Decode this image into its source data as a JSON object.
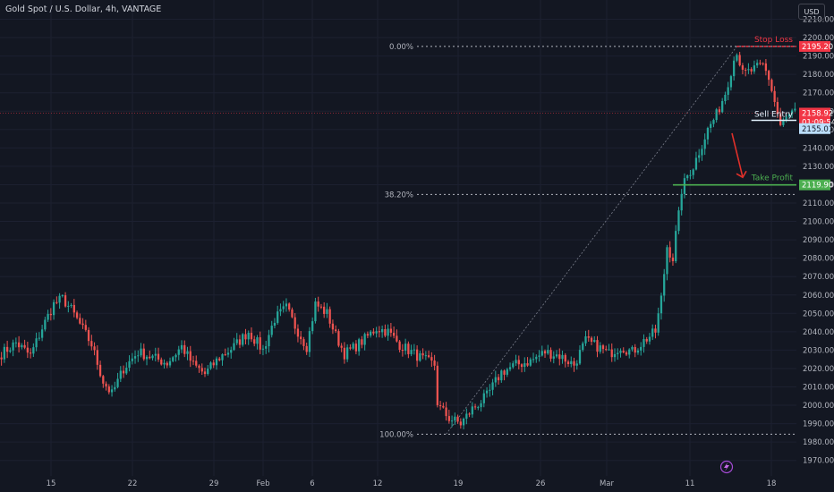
{
  "header": {
    "title": "Gold Spot / U.S. Dollar, 4h, VANTAGE",
    "currency_button": "USD"
  },
  "colors": {
    "background": "#131722",
    "up": "#26a69a",
    "down": "#ef5350",
    "axis_text": "#b2b5be",
    "stop_loss": "#f23645",
    "take_profit": "#4caf50",
    "entry": "#90caf9",
    "arrow": "#e0302a",
    "fib_line": "#b2b5be",
    "current_price": "#f23645"
  },
  "icons": {
    "bottom_logo": "lightning-bolt-icon"
  },
  "chart_data": {
    "type": "candlestick",
    "timeframe": "4h",
    "ylim": [
      1965,
      2212
    ],
    "y_ticks": [
      1970,
      1980,
      1990,
      2000,
      2010,
      2020,
      2030,
      2040,
      2050,
      2060,
      2070,
      2080,
      2090,
      2100,
      2110,
      2120,
      2130,
      2140,
      2150,
      2160,
      2170,
      2180,
      2190,
      2200,
      2210
    ],
    "x_ticks": [
      "15",
      "22",
      "29",
      "Feb",
      "6",
      "12",
      "19",
      "26",
      "Mar",
      "11",
      "18"
    ],
    "price_labels": {
      "stop_loss": "2195.20",
      "current": "2158.92",
      "countdown": "01:09:54",
      "entry": "2155.01",
      "take_profit": "2119.90"
    },
    "annotations": {
      "stop_loss": "Stop Loss",
      "sell_entry": "Sell Entry",
      "take_profit": "Take Profit"
    },
    "levels": {
      "stop_loss": 2195.2,
      "entry": 2155.01,
      "take_profit": 2119.9,
      "current": 2158.92
    },
    "fibonacci": {
      "high": 2195.2,
      "low": 1984.3,
      "levels": [
        {
          "label": "0.00%",
          "value": 2195.2
        },
        {
          "label": "38.20%",
          "value": 2114.7
        },
        {
          "label": "100.00%",
          "value": 1984.3
        }
      ]
    },
    "waypoints": [
      [
        0,
        2028
      ],
      [
        5,
        2034
      ],
      [
        10,
        2027
      ],
      [
        14,
        2042
      ],
      [
        18,
        2055
      ],
      [
        21,
        2058
      ],
      [
        24,
        2052
      ],
      [
        27,
        2044
      ],
      [
        31,
        2033
      ],
      [
        35,
        2013
      ],
      [
        38,
        2006
      ],
      [
        42,
        2020
      ],
      [
        47,
        2029
      ],
      [
        52,
        2026
      ],
      [
        57,
        2023
      ],
      [
        62,
        2032
      ],
      [
        66,
        2022
      ],
      [
        70,
        2017
      ],
      [
        75,
        2026
      ],
      [
        80,
        2032
      ],
      [
        85,
        2040
      ],
      [
        90,
        2030
      ],
      [
        94,
        2047
      ],
      [
        98,
        2053
      ],
      [
        101,
        2043
      ],
      [
        105,
        2032
      ],
      [
        108,
        2055
      ],
      [
        112,
        2050
      ],
      [
        115,
        2038
      ],
      [
        118,
        2028
      ],
      [
        121,
        2031
      ],
      [
        125,
        2036
      ],
      [
        129,
        2042
      ],
      [
        133,
        2040
      ],
      [
        137,
        2033
      ],
      [
        141,
        2029
      ],
      [
        145,
        2025
      ],
      [
        149,
        2022
      ],
      [
        150,
        2000
      ],
      [
        154,
        1993
      ],
      [
        158,
        1990
      ],
      [
        162,
        1998
      ],
      [
        167,
        2005
      ],
      [
        172,
        2018
      ],
      [
        177,
        2022
      ],
      [
        182,
        2024
      ],
      [
        187,
        2029
      ],
      [
        192,
        2027
      ],
      [
        197,
        2022
      ],
      [
        201,
        2035
      ],
      [
        205,
        2032
      ],
      [
        209,
        2028
      ],
      [
        213,
        2032
      ],
      [
        217,
        2029
      ],
      [
        221,
        2035
      ],
      [
        225,
        2040
      ],
      [
        227,
        2058
      ],
      [
        229,
        2086
      ],
      [
        231,
        2080
      ],
      [
        233,
        2106
      ],
      [
        234,
        2117
      ],
      [
        236,
        2125
      ],
      [
        238,
        2130
      ],
      [
        240,
        2138
      ],
      [
        243,
        2150
      ],
      [
        246,
        2158
      ],
      [
        249,
        2170
      ],
      [
        252,
        2188
      ],
      [
        253,
        2193
      ],
      [
        255,
        2180
      ],
      [
        258,
        2182
      ],
      [
        262,
        2185
      ],
      [
        264,
        2178
      ],
      [
        266,
        2165
      ],
      [
        268,
        2152
      ],
      [
        270,
        2156
      ],
      [
        272,
        2159
      ]
    ]
  }
}
